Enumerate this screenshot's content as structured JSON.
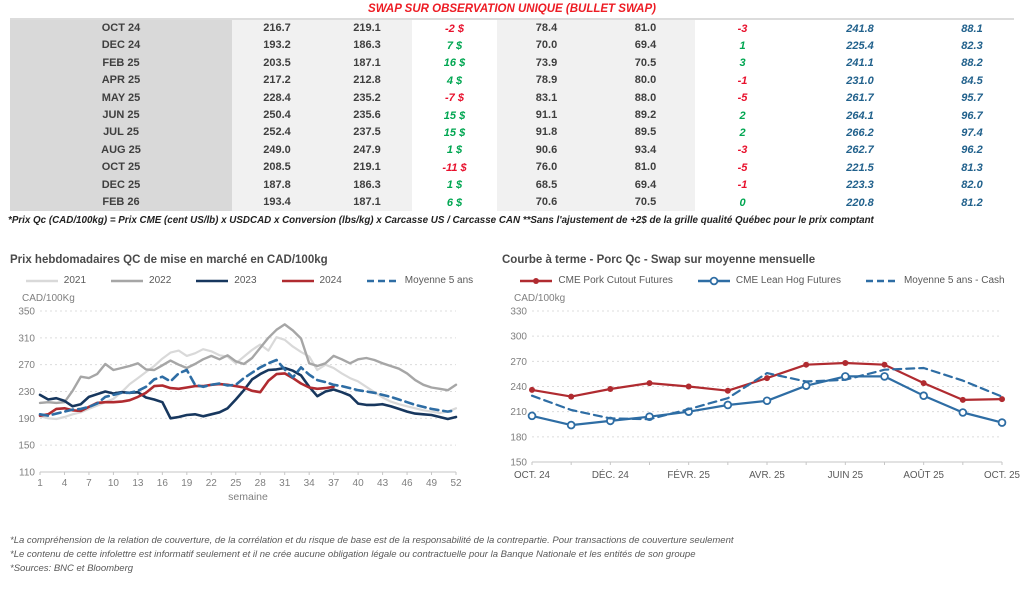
{
  "page_title": "SWAP SUR OBSERVATION UNIQUE (BULLET SWAP)",
  "colors": {
    "title_red": "#ed1c24",
    "negative": "#e8112d",
    "positive": "#00a651",
    "blue_value": "#21618c",
    "month_bg": "#d9d9d9",
    "panel_bg": "#f1f1f1",
    "navy_2023": "#17375e",
    "red_2024": "#b02b30",
    "steel_blue": "#2e6da4"
  },
  "table": {
    "rows": [
      {
        "month": "OCT 24",
        "cols": [
          "216.7",
          "219.1",
          "-2 $",
          "78.4",
          "81.0",
          "-3",
          "241.8",
          "88.1"
        ]
      },
      {
        "month": "DEC 24",
        "cols": [
          "193.2",
          "186.3",
          "7 $",
          "70.0",
          "69.4",
          "1",
          "225.4",
          "82.3"
        ]
      },
      {
        "month": "FEB 25",
        "cols": [
          "203.5",
          "187.1",
          "16 $",
          "73.9",
          "70.5",
          "3",
          "241.1",
          "88.2"
        ]
      },
      {
        "month": "APR 25",
        "cols": [
          "217.2",
          "212.8",
          "4 $",
          "78.9",
          "80.0",
          "-1",
          "231.0",
          "84.5"
        ]
      },
      {
        "month": "MAY 25",
        "cols": [
          "228.4",
          "235.2",
          "-7 $",
          "83.1",
          "88.0",
          "-5",
          "261.7",
          "95.7"
        ]
      },
      {
        "month": "JUN 25",
        "cols": [
          "250.4",
          "235.6",
          "15 $",
          "91.1",
          "89.2",
          "2",
          "264.1",
          "96.7"
        ]
      },
      {
        "month": "JUL 25",
        "cols": [
          "252.4",
          "237.5",
          "15 $",
          "91.8",
          "89.5",
          "2",
          "266.2",
          "97.4"
        ]
      },
      {
        "month": "AUG 25",
        "cols": [
          "249.0",
          "247.9",
          "1 $",
          "90.6",
          "93.4",
          "-3",
          "262.7",
          "96.2"
        ]
      },
      {
        "month": "OCT 25",
        "cols": [
          "208.5",
          "219.1",
          "-11 $",
          "76.0",
          "81.0",
          "-5",
          "221.5",
          "81.3"
        ]
      },
      {
        "month": "DEC 25",
        "cols": [
          "187.8",
          "186.3",
          "1 $",
          "68.5",
          "69.4",
          "-1",
          "223.3",
          "82.0"
        ]
      },
      {
        "month": "FEB 26",
        "cols": [
          "193.4",
          "187.1",
          "6 $",
          "70.6",
          "70.5",
          "0",
          "220.8",
          "81.2"
        ]
      }
    ],
    "footnote": "*Prix Qc (CAD/100kg) = Prix CME (cent US/lb) x USDCAD x Conversion (lbs/kg) x Carcasse US / Carcasse CAN **Sans l'ajustement de +2$ de la grille qualité Québec pour le prix comptant"
  },
  "chart_data": [
    {
      "type": "line",
      "title": "Prix hebdomadaires QC de mise en marché en CAD/100kg",
      "ylabel": "CAD/100Kg",
      "xlabel": "semaine",
      "grid": true,
      "legend_position": "top",
      "ylim": [
        110,
        350
      ],
      "yticks": [
        350,
        310,
        270,
        230,
        190,
        150,
        110
      ],
      "x": [
        1,
        2,
        3,
        4,
        5,
        6,
        7,
        8,
        9,
        10,
        11,
        12,
        13,
        14,
        15,
        16,
        17,
        18,
        19,
        20,
        21,
        22,
        23,
        24,
        25,
        26,
        27,
        28,
        29,
        30,
        31,
        32,
        33,
        34,
        35,
        36,
        37,
        38,
        39,
        40,
        41,
        42,
        43,
        44,
        45,
        46,
        47,
        48,
        49,
        50,
        51,
        52
      ],
      "xticks": [
        1,
        4,
        7,
        10,
        13,
        16,
        19,
        22,
        25,
        28,
        31,
        34,
        37,
        40,
        43,
        46,
        49,
        52
      ],
      "series": [
        {
          "name": "2021",
          "color": "#d9d9d9",
          "dash": false,
          "marker": "none",
          "width": 2.2,
          "values": [
            193,
            190,
            189,
            192,
            196,
            199,
            204,
            209,
            214,
            219,
            229,
            241,
            250,
            259,
            268,
            279,
            288,
            291,
            283,
            287,
            293,
            290,
            284,
            282,
            272,
            282,
            292,
            300,
            291,
            311,
            307,
            297,
            289,
            282,
            262,
            270,
            265,
            257,
            250,
            245,
            237,
            229,
            221,
            215,
            211,
            208,
            205,
            202,
            200,
            198,
            200,
            205
          ]
        },
        {
          "name": "2022",
          "color": "#a6a6a6",
          "dash": false,
          "marker": "none",
          "width": 2.4,
          "values": [
            213,
            214,
            213,
            214,
            231,
            252,
            250,
            256,
            271,
            262,
            265,
            268,
            272,
            263,
            262,
            269,
            276,
            270,
            265,
            271,
            278,
            283,
            278,
            284,
            275,
            271,
            280,
            295,
            310,
            322,
            330,
            321,
            309,
            272,
            268,
            272,
            283,
            278,
            272,
            278,
            280,
            277,
            272,
            268,
            264,
            257,
            247,
            240,
            236,
            234,
            232,
            240
          ]
        },
        {
          "name": "2023",
          "color": "#17375e",
          "dash": false,
          "marker": "none",
          "width": 2.6,
          "values": [
            225,
            218,
            220,
            216,
            208,
            211,
            222,
            226,
            230,
            227,
            229,
            228,
            229,
            221,
            218,
            214,
            190,
            192,
            195,
            196,
            193,
            196,
            199,
            205,
            218,
            232,
            248,
            256,
            262,
            263,
            265,
            261,
            254,
            237,
            223,
            230,
            233,
            229,
            224,
            212,
            210,
            210,
            211,
            208,
            204,
            200,
            197,
            196,
            195,
            192,
            189,
            192
          ]
        },
        {
          "name": "2024",
          "color": "#b02b30",
          "dash": false,
          "marker": "none",
          "width": 2.6,
          "values": [
            194,
            196,
            204,
            205,
            202,
            201,
            207,
            213,
            214,
            214,
            215,
            217,
            222,
            228,
            238,
            239,
            235,
            234,
            236,
            238,
            238,
            240,
            241,
            240,
            238,
            236,
            231,
            229,
            246,
            256,
            257,
            250,
            242,
            236,
            234,
            235,
            237
          ]
        },
        {
          "name": "Moyenne 5 ans",
          "color": "#2e6da4",
          "dash": true,
          "marker": "none",
          "width": 2.6,
          "values": [
            196,
            194,
            197,
            200,
            203,
            204,
            207,
            212,
            222,
            225,
            228,
            228,
            231,
            237,
            248,
            252,
            245,
            257,
            262,
            240,
            237,
            240,
            242,
            239,
            240,
            250,
            258,
            266,
            272,
            277,
            263,
            251,
            266,
            255,
            247,
            244,
            240,
            238,
            235,
            232,
            230,
            228,
            225,
            222,
            218,
            214,
            210,
            207,
            204,
            202,
            200,
            202
          ]
        }
      ]
    },
    {
      "type": "line",
      "title": "Courbe à terme - Porc Qc - Swap sur moyenne mensuelle",
      "ylabel": "CAD/100kg",
      "xlabel": "",
      "grid": true,
      "legend_position": "top",
      "ylim": [
        150,
        330
      ],
      "yticks": [
        330,
        300,
        270,
        240,
        210,
        180,
        150
      ],
      "categories": [
        "OCT. 24",
        "NOV. 24",
        "DÉC. 24",
        "JANV. 25",
        "FÉVR. 25",
        "MARS 25",
        "AVR. 25",
        "MAI 25",
        "JUIN 25",
        "JUIL. 25",
        "AOÛT 25",
        "SEPT. 25",
        "OCT. 25"
      ],
      "x_labels_shown": [
        "OCT. 24",
        "DÉC. 24",
        "FÉVR. 25",
        "AVR. 25",
        "JUIN 25",
        "AOÛT 25",
        "OCT. 25"
      ],
      "series": [
        {
          "name": "CME Pork Cutout Futures",
          "color": "#b02b30",
          "dash": false,
          "marker": "filled",
          "width": 2.2,
          "values": [
            236,
            228,
            237,
            244,
            240,
            235,
            250,
            266,
            268,
            266,
            244,
            224,
            225
          ]
        },
        {
          "name": "CME Lean Hog Futures",
          "color": "#2e6da4",
          "dash": false,
          "marker": "open",
          "width": 2.2,
          "values": [
            205,
            194,
            199,
            204,
            210,
            218,
            223,
            241,
            252,
            252,
            229,
            209,
            197
          ]
        },
        {
          "name": "Moyenne 5 ans - Cash",
          "color": "#2e6da4",
          "dash": true,
          "marker": "none",
          "width": 2.2,
          "values": [
            229,
            212,
            202,
            201,
            213,
            226,
            256,
            246,
            248,
            260,
            262,
            247,
            228
          ]
        }
      ]
    }
  ],
  "footer_lines": [
    "*La compréhension de la relation de couverture, de la corrélation et du risque de base est de la responsabilité de la contrepartie. Pour transactions de couverture seulement",
    "*Le contenu de cette infolettre est informatif seulement et il ne crée aucune obligation légale ou contractuelle pour la Banque Nationale et les entités de son groupe",
    "*Sources: BNC et Bloomberg"
  ]
}
